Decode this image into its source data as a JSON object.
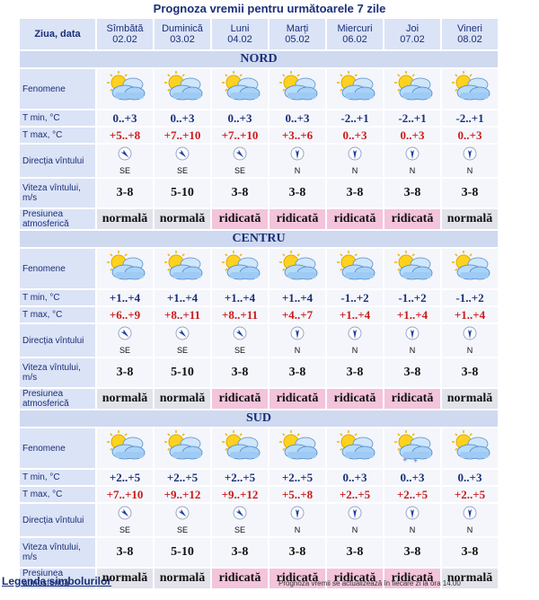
{
  "title": "Prognoza vremii pentru următoarele 7 zile",
  "header": {
    "first": "Ziua, data",
    "days": [
      {
        "name": "Sîmbătă",
        "date": "02.02"
      },
      {
        "name": "Duminică",
        "date": "03.02"
      },
      {
        "name": "Luni",
        "date": "04.02"
      },
      {
        "name": "Marți",
        "date": "05.02"
      },
      {
        "name": "Miercuri",
        "date": "06.02"
      },
      {
        "name": "Joi",
        "date": "07.02"
      },
      {
        "name": "Vineri",
        "date": "08.02"
      }
    ]
  },
  "labels": {
    "phenomena": "Fenomene",
    "tmin": "T min, °C",
    "tmax": "T max, °C",
    "direction": "Direcția vîntului",
    "speed": "Viteza vîntului, m/s",
    "pressure": "Presiunea atmosferică"
  },
  "regions": [
    {
      "name": "NORD",
      "icons": [
        "partly-cloudy-icon",
        "partly-cloudy-icon",
        "partly-cloudy-icon",
        "partly-cloudy-icon",
        "partly-cloudy-icon",
        "partly-cloudy-icon",
        "partly-cloudy-icon"
      ],
      "tmin": [
        "0..+3",
        "0..+3",
        "0..+3",
        "0..+3",
        "-2..+1",
        "-2..+1",
        "-2..+1"
      ],
      "tmax": [
        "+5..+8",
        "+7..+10",
        "+7..+10",
        "+3..+6",
        "0..+3",
        "0..+3",
        "0..+3"
      ],
      "dir": [
        "SE",
        "SE",
        "SE",
        "N",
        "N",
        "N",
        "N"
      ],
      "speed": [
        "3-8",
        "5-10",
        "3-8",
        "3-8",
        "3-8",
        "3-8",
        "3-8"
      ],
      "pressure": [
        "normală",
        "normală",
        "ridicată",
        "ridicată",
        "ridicată",
        "ridicată",
        "normală"
      ],
      "pressure_level": [
        "normal",
        "normal",
        "high",
        "high",
        "high",
        "high",
        "normal"
      ]
    },
    {
      "name": "CENTRU",
      "icons": [
        "partly-cloudy-icon",
        "partly-cloudy-icon",
        "partly-cloudy-icon",
        "partly-cloudy-icon",
        "partly-cloudy-icon",
        "partly-cloudy-icon",
        "partly-cloudy-icon"
      ],
      "tmin": [
        "+1..+4",
        "+1..+4",
        "+1..+4",
        "+1..+4",
        "-1..+2",
        "-1..+2",
        "-1..+2"
      ],
      "tmax": [
        "+6..+9",
        "+8..+11",
        "+8..+11",
        "+4..+7",
        "+1..+4",
        "+1..+4",
        "+1..+4"
      ],
      "dir": [
        "SE",
        "SE",
        "SE",
        "N",
        "N",
        "N",
        "N"
      ],
      "speed": [
        "3-8",
        "5-10",
        "3-8",
        "3-8",
        "3-8",
        "3-8",
        "3-8"
      ],
      "pressure": [
        "normală",
        "normală",
        "ridicată",
        "ridicată",
        "ridicată",
        "ridicată",
        "normală"
      ],
      "pressure_level": [
        "normal",
        "normal",
        "high",
        "high",
        "high",
        "high",
        "normal"
      ]
    },
    {
      "name": "SUD",
      "icons": [
        "partly-cloudy-icon",
        "partly-cloudy-icon",
        "partly-cloudy-icon",
        "partly-cloudy-icon",
        "partly-cloudy-icon",
        "snow-icon",
        "partly-cloudy-icon"
      ],
      "tmin": [
        "+2..+5",
        "+2..+5",
        "+2..+5",
        "+2..+5",
        "0..+3",
        "0..+3",
        "0..+3"
      ],
      "tmax": [
        "+7..+10",
        "+9..+12",
        "+9..+12",
        "+5..+8",
        "+2..+5",
        "+2..+5",
        "+2..+5"
      ],
      "dir": [
        "SE",
        "SE",
        "SE",
        "N",
        "N",
        "N",
        "N"
      ],
      "speed": [
        "3-8",
        "5-10",
        "3-8",
        "3-8",
        "3-8",
        "3-8",
        "3-8"
      ],
      "pressure": [
        "normală",
        "normală",
        "ridicată",
        "ridicată",
        "ridicată",
        "ridicată",
        "normală"
      ],
      "pressure_level": [
        "normal",
        "normal",
        "high",
        "high",
        "high",
        "high",
        "normal"
      ]
    }
  ],
  "legend_link": "Legenda simbolurilor",
  "update_note": "Prognoza vremii se actualizează în fiecare zi la ora 14.00",
  "colors": {
    "title": "#1a2f78",
    "tmax": "#cc1a1a",
    "high_pressure": "#f3c4db",
    "normal_pressure": "#e2e2ea"
  }
}
